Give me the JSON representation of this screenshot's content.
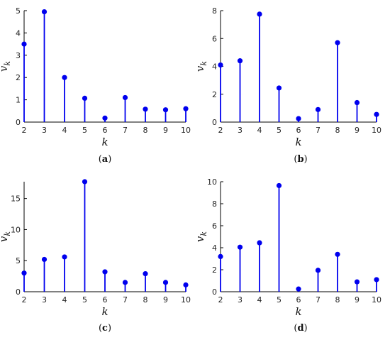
{
  "figure": {
    "captions": [
      "(a)",
      "(b)",
      "(c)",
      "(d)"
    ]
  },
  "style": {
    "stem_color": "#0000ee",
    "axis_color": "#000000"
  },
  "chart_data": [
    {
      "type": "stem",
      "xlabel": "k",
      "ylabel": "v_k",
      "x": [
        2,
        3,
        4,
        5,
        6,
        7,
        8,
        9,
        10
      ],
      "values": [
        3.5,
        4.95,
        2.0,
        1.07,
        0.18,
        1.1,
        0.58,
        0.55,
        0.6
      ],
      "xlim": [
        2,
        10
      ],
      "ylim": [
        0,
        5
      ],
      "yticks": [
        0,
        1,
        2,
        3,
        4,
        5
      ],
      "xticks": [
        2,
        3,
        4,
        5,
        6,
        7,
        8,
        9,
        10
      ],
      "grid": false
    },
    {
      "type": "stem",
      "xlabel": "k",
      "ylabel": "v_k",
      "x": [
        2,
        3,
        4,
        5,
        6,
        7,
        8,
        9,
        10
      ],
      "values": [
        4.1,
        4.4,
        7.75,
        2.45,
        0.25,
        0.9,
        5.7,
        1.4,
        0.55
      ],
      "xlim": [
        2,
        10
      ],
      "ylim": [
        0,
        8
      ],
      "yticks": [
        0,
        2,
        4,
        6,
        8
      ],
      "xticks": [
        2,
        3,
        4,
        5,
        6,
        7,
        8,
        9,
        10
      ],
      "grid": false
    },
    {
      "type": "stem",
      "xlabel": "k",
      "ylabel": "v_k",
      "x": [
        2,
        3,
        4,
        5,
        6,
        7,
        8,
        9,
        10
      ],
      "values": [
        3.0,
        5.2,
        5.6,
        17.7,
        3.2,
        1.5,
        2.9,
        1.5,
        1.1
      ],
      "xlim": [
        2,
        10
      ],
      "ylim": [
        0,
        17.7
      ],
      "yticks": [
        0,
        5,
        10,
        15
      ],
      "xticks": [
        2,
        3,
        4,
        5,
        6,
        7,
        8,
        9,
        10
      ],
      "grid": false
    },
    {
      "type": "stem",
      "xlabel": "k",
      "ylabel": "v_k",
      "x": [
        2,
        3,
        4,
        5,
        6,
        7,
        8,
        9,
        10
      ],
      "values": [
        3.2,
        4.05,
        4.45,
        9.65,
        0.25,
        1.95,
        3.4,
        0.9,
        1.1
      ],
      "xlim": [
        2,
        10
      ],
      "ylim": [
        0,
        10
      ],
      "yticks": [
        0,
        2,
        4,
        6,
        8,
        10
      ],
      "xticks": [
        2,
        3,
        4,
        5,
        6,
        7,
        8,
        9,
        10
      ],
      "grid": false
    }
  ]
}
